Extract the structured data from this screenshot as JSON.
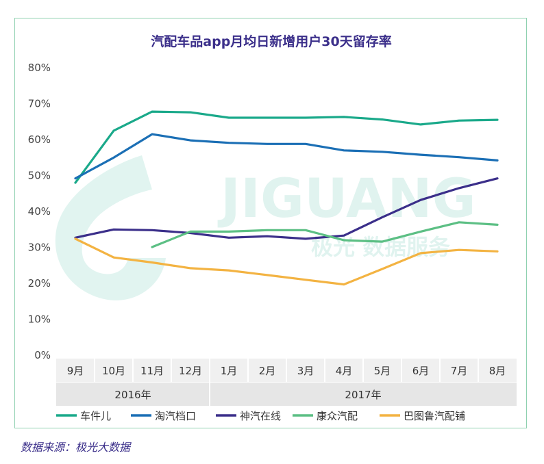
{
  "source": "数据来源：极光大数据",
  "watermark": {
    "brand": "JIGUANG",
    "tagline": "极光 数据服务"
  },
  "chart_data": {
    "type": "line",
    "title": "汽配车品app月均日新增用户30天留存率",
    "xlabel": "",
    "ylabel": "",
    "ylim": [
      0,
      80
    ],
    "yticks": [
      "0%",
      "10%",
      "20%",
      "30%",
      "40%",
      "50%",
      "60%",
      "70%",
      "80%"
    ],
    "categories": [
      "9月",
      "10月",
      "11月",
      "12月",
      "1月",
      "2月",
      "3月",
      "4月",
      "5月",
      "6月",
      "7月",
      "8月"
    ],
    "year_groups": [
      {
        "label": "2016年",
        "span": 4
      },
      {
        "label": "2017年",
        "span": 8
      }
    ],
    "grid": false,
    "legend_position": "bottom",
    "series": [
      {
        "name": "车件儿",
        "color": "#1aa98a",
        "values": [
          48,
          62.5,
          67.8,
          67.6,
          66.1,
          66.1,
          66.1,
          66.3,
          65.6,
          64.2,
          65.3,
          65.5
        ]
      },
      {
        "name": "淘汽档口",
        "color": "#1b6fb5",
        "values": [
          49.2,
          55,
          61.5,
          59.8,
          59.1,
          58.8,
          58.8,
          57,
          56.6,
          55.8,
          55.1,
          54.2
        ]
      },
      {
        "name": "神汽在线",
        "color": "#3b2f8a",
        "values": [
          32.7,
          35,
          34.8,
          34,
          32.7,
          33.1,
          32.4,
          33.3,
          38.4,
          43.2,
          46.5,
          49.2
        ]
      },
      {
        "name": "康众汽配",
        "color": "#5cbf84",
        "values": [
          null,
          null,
          30.1,
          34.4,
          34.4,
          34.8,
          34.8,
          32,
          31.6,
          34.4,
          37,
          36.3
        ]
      },
      {
        "name": "巴图鲁汽配铺",
        "color": "#f3b342",
        "values": [
          32.4,
          27.2,
          25.8,
          24.2,
          23.6,
          22.3,
          21,
          19.7,
          24,
          28.4,
          29.3,
          28.9
        ]
      }
    ]
  }
}
